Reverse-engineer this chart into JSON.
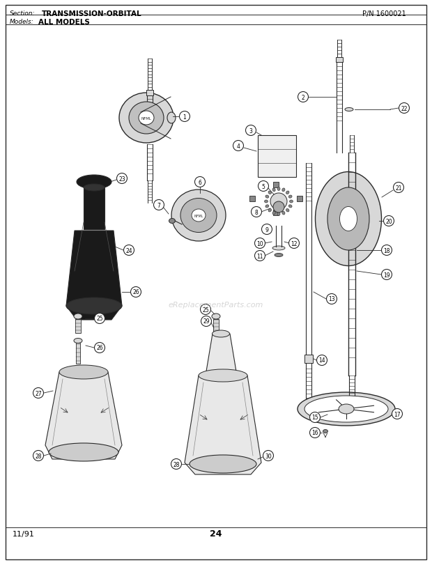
{
  "title_section": "Section:",
  "title_name": "TRANSMISSION-ORBITAL",
  "pn_label": "P/N 1600021",
  "models_label": "Models:",
  "models_value": "ALL MODELS",
  "footer_date": "11/91",
  "footer_page": "24",
  "bg_color": "#ffffff",
  "border_color": "#000000",
  "text_color": "#000000",
  "watermark": "eReplacementParts.com",
  "ink": "#2a2a2a",
  "light_fill": "#d8d8d8",
  "dark_fill": "#1a1a1a",
  "mid_fill": "#888888"
}
